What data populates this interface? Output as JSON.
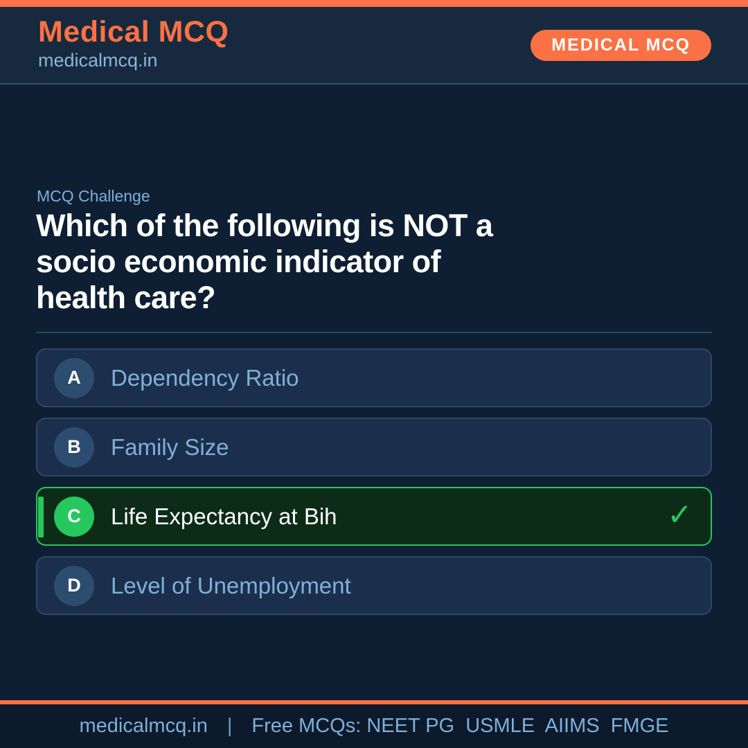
{
  "theme": {
    "accent_orange": "#F97144",
    "page_bg": "#0E1F33",
    "header_bg": "#17293E",
    "header_border": "#33506E",
    "card_bg": "#1B2F4C",
    "card_border": "#2C4866",
    "letter_badge_bg": "#2D4D70",
    "option_text_color": "#7FB0D9",
    "accent_green": "#27C75F",
    "selected_card_bg": "#0D2C18",
    "footer_bg": "#0C1A2B",
    "question_text_color": "#FFFFFF"
  },
  "header": {
    "title": "Medical MCQ",
    "subtitle": "medicalmcq.in",
    "badge": "MEDICAL MCQ"
  },
  "question": {
    "eyebrow": "MCQ Challenge",
    "text": "Which of the following is NOT a\nsocio economic indicator of\nhealth care?"
  },
  "options": [
    {
      "letter": "A",
      "text": "Dependency Ratio",
      "selected": false
    },
    {
      "letter": "B",
      "text": "Family Size",
      "selected": false
    },
    {
      "letter": "C",
      "text": "Life Expectancy at Bih",
      "selected": true,
      "check_icon": "✓"
    },
    {
      "letter": "D",
      "text": "Level of Unemployment",
      "selected": false
    }
  ],
  "footer": {
    "site": "medicalmcq.in",
    "separator": "|",
    "tagline": "Free MCQs: NEET PG  USMLE  AIIMS  FMGE"
  }
}
